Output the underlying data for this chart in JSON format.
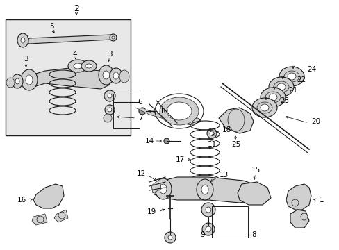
{
  "bg_color": "#ffffff",
  "lc": "#1a1a1a",
  "fc_part": "#d0d0d0",
  "fc_dark": "#999999",
  "fc_inset": "#e8e8e8",
  "figsize": [
    4.89,
    3.6
  ],
  "dpi": 100
}
